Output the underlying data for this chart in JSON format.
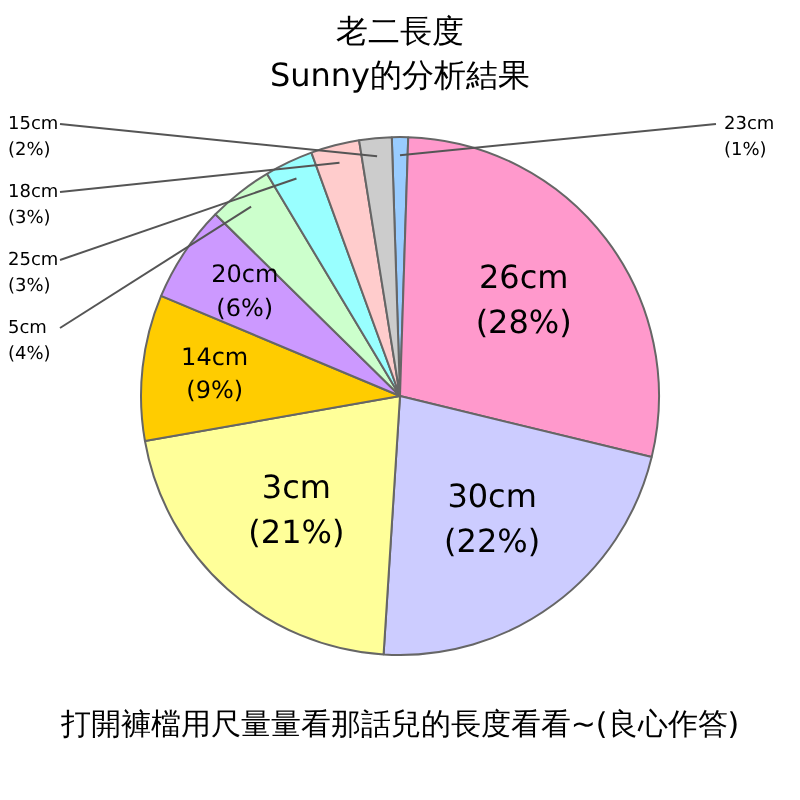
{
  "chart_data": {
    "type": "pie",
    "title": "老二長度",
    "subtitle": "Sunny的分析結果",
    "categories": [
      "23cm",
      "26cm",
      "30cm",
      "3cm",
      "14cm",
      "20cm",
      "5cm",
      "25cm",
      "18cm",
      "15cm"
    ],
    "values": [
      1,
      28,
      22,
      21,
      9,
      6,
      4,
      3,
      3,
      2
    ],
    "value_labels": [
      "(1%)",
      "(28%)",
      "(22%)",
      "(21%)",
      "(9%)",
      "(6%)",
      "(4%)",
      "(3%)",
      "(3%)",
      "(2%)"
    ],
    "colors": [
      "#99ccff",
      "#ff99cc",
      "#ccccff",
      "#ffff99",
      "#ffcc00",
      "#cc99ff",
      "#ccffcc",
      "#99ffff",
      "#ffcccc",
      "#cccccc"
    ],
    "annotations": [
      "打開褲檔用尺量量看那話兒的長度看看~(良心作答)"
    ],
    "legend": false
  }
}
